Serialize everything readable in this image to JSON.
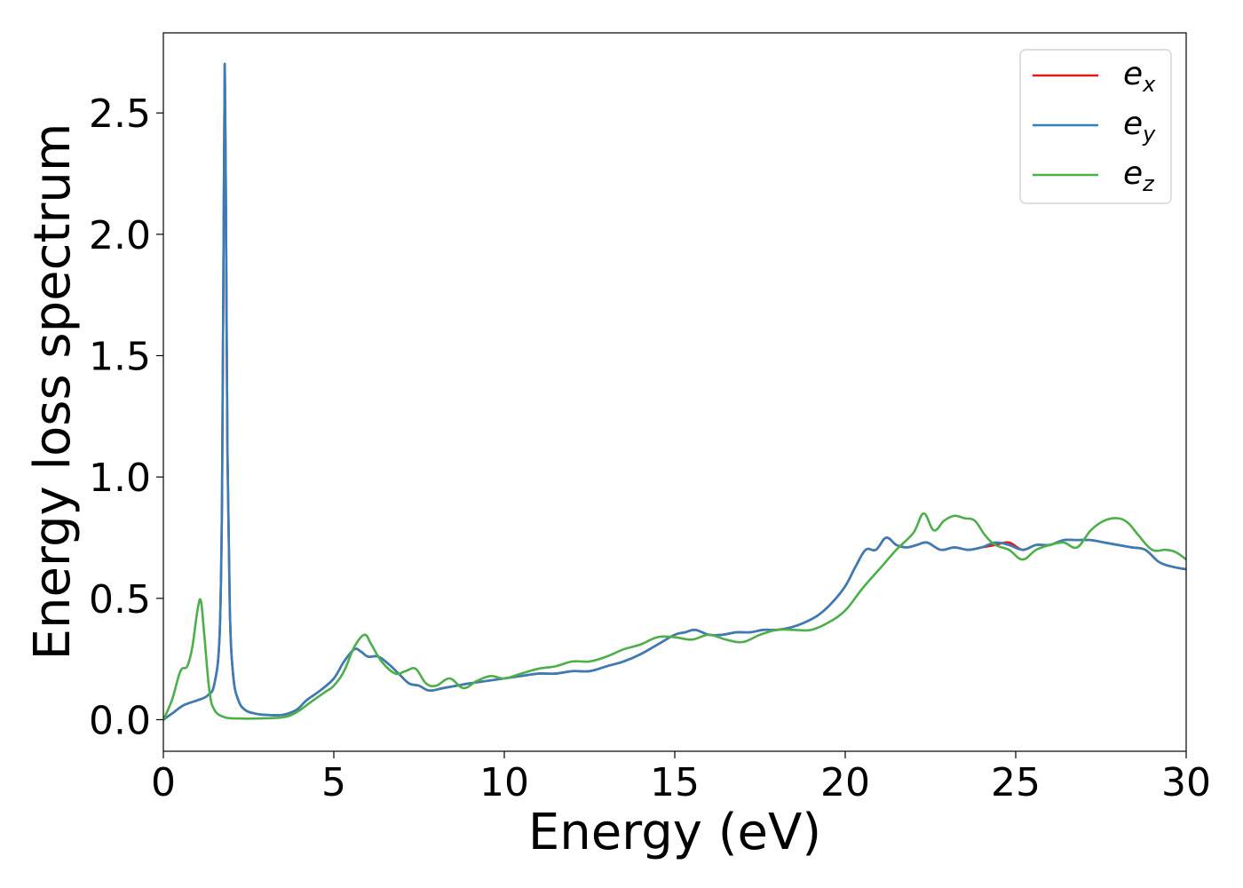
{
  "chart_data": {
    "type": "line",
    "title": "",
    "xlabel": "Energy (eV)",
    "ylabel": "Energy loss spectrum",
    "xlim": [
      0,
      30
    ],
    "ylim": [
      -0.13,
      2.83
    ],
    "xticks": [
      0,
      5,
      10,
      15,
      20,
      25,
      30
    ],
    "xtick_labels": [
      "0",
      "5",
      "10",
      "15",
      "20",
      "25",
      "30"
    ],
    "yticks": [
      0.0,
      0.5,
      1.0,
      1.5,
      2.0,
      2.5
    ],
    "ytick_labels": [
      "0.0",
      "0.5",
      "1.0",
      "1.5",
      "2.0",
      "2.5"
    ],
    "grid": false,
    "legend_position": "top-right",
    "series": [
      {
        "name": "e_x",
        "label_main": "e",
        "label_sub": "x",
        "color": "#e41a1c",
        "x": [
          0,
          0.3,
          0.6,
          1.0,
          1.3,
          1.5,
          1.65,
          1.72,
          1.76,
          1.8,
          1.84,
          1.88,
          1.95,
          2.05,
          2.2,
          2.4,
          2.7,
          3.0,
          3.5,
          3.9,
          4.2,
          4.6,
          5.0,
          5.3,
          5.6,
          5.8,
          6.0,
          6.3,
          6.6,
          6.9,
          7.2,
          7.5,
          7.8,
          8.2,
          8.6,
          9.0,
          9.5,
          10.0,
          10.5,
          11.0,
          11.5,
          12.0,
          12.5,
          13.0,
          13.5,
          14.0,
          14.5,
          15.0,
          15.3,
          15.6,
          16.0,
          16.4,
          16.8,
          17.2,
          17.6,
          18.0,
          18.4,
          18.8,
          19.2,
          19.6,
          20.0,
          20.3,
          20.6,
          20.9,
          21.2,
          21.5,
          21.8,
          22.1,
          22.4,
          22.8,
          23.2,
          23.6,
          24.0,
          24.4,
          24.8,
          25.2,
          25.6,
          26.0,
          26.4,
          26.8,
          27.2,
          27.6,
          28.0,
          28.4,
          28.8,
          29.2,
          29.6,
          30.0
        ],
        "y": [
          0.0,
          0.03,
          0.06,
          0.08,
          0.1,
          0.15,
          0.35,
          0.9,
          1.8,
          2.7,
          2.0,
          1.1,
          0.45,
          0.18,
          0.08,
          0.04,
          0.025,
          0.02,
          0.02,
          0.04,
          0.08,
          0.12,
          0.17,
          0.24,
          0.29,
          0.28,
          0.26,
          0.26,
          0.23,
          0.19,
          0.15,
          0.14,
          0.12,
          0.13,
          0.14,
          0.15,
          0.16,
          0.17,
          0.18,
          0.19,
          0.19,
          0.2,
          0.2,
          0.22,
          0.24,
          0.27,
          0.31,
          0.35,
          0.36,
          0.37,
          0.35,
          0.35,
          0.36,
          0.36,
          0.37,
          0.37,
          0.38,
          0.4,
          0.43,
          0.48,
          0.55,
          0.63,
          0.7,
          0.7,
          0.75,
          0.72,
          0.71,
          0.72,
          0.73,
          0.7,
          0.71,
          0.7,
          0.71,
          0.72,
          0.73,
          0.7,
          0.72,
          0.72,
          0.74,
          0.74,
          0.74,
          0.73,
          0.72,
          0.71,
          0.7,
          0.65,
          0.63,
          0.62
        ]
      },
      {
        "name": "e_y",
        "label_main": "e",
        "label_sub": "y",
        "color": "#377eb8",
        "x": [
          0,
          0.3,
          0.6,
          1.0,
          1.3,
          1.5,
          1.65,
          1.72,
          1.76,
          1.8,
          1.84,
          1.88,
          1.95,
          2.05,
          2.2,
          2.4,
          2.7,
          3.0,
          3.5,
          3.9,
          4.2,
          4.6,
          5.0,
          5.3,
          5.6,
          5.8,
          6.0,
          6.3,
          6.6,
          6.9,
          7.2,
          7.5,
          7.8,
          8.2,
          8.6,
          9.0,
          9.5,
          10.0,
          10.5,
          11.0,
          11.5,
          12.0,
          12.5,
          13.0,
          13.5,
          14.0,
          14.5,
          15.0,
          15.3,
          15.6,
          16.0,
          16.4,
          16.8,
          17.2,
          17.6,
          18.0,
          18.4,
          18.8,
          19.2,
          19.6,
          20.0,
          20.3,
          20.6,
          20.9,
          21.2,
          21.5,
          21.8,
          22.1,
          22.4,
          22.8,
          23.2,
          23.6,
          24.0,
          24.4,
          24.8,
          25.2,
          25.6,
          26.0,
          26.4,
          26.8,
          27.2,
          27.6,
          28.0,
          28.4,
          28.8,
          29.2,
          29.6,
          30.0
        ],
        "y": [
          0.0,
          0.03,
          0.06,
          0.08,
          0.1,
          0.15,
          0.35,
          0.9,
          1.8,
          2.7,
          2.0,
          1.1,
          0.45,
          0.18,
          0.08,
          0.04,
          0.025,
          0.02,
          0.02,
          0.04,
          0.08,
          0.12,
          0.17,
          0.24,
          0.29,
          0.28,
          0.26,
          0.26,
          0.23,
          0.19,
          0.15,
          0.14,
          0.12,
          0.13,
          0.14,
          0.15,
          0.16,
          0.17,
          0.18,
          0.19,
          0.19,
          0.2,
          0.2,
          0.22,
          0.24,
          0.27,
          0.31,
          0.35,
          0.36,
          0.37,
          0.35,
          0.35,
          0.36,
          0.36,
          0.37,
          0.37,
          0.38,
          0.4,
          0.43,
          0.48,
          0.55,
          0.63,
          0.7,
          0.7,
          0.75,
          0.72,
          0.71,
          0.72,
          0.73,
          0.7,
          0.71,
          0.7,
          0.71,
          0.73,
          0.72,
          0.7,
          0.72,
          0.72,
          0.74,
          0.74,
          0.74,
          0.73,
          0.72,
          0.71,
          0.7,
          0.65,
          0.63,
          0.62
        ]
      },
      {
        "name": "e_z",
        "label_main": "e",
        "label_sub": "z",
        "color": "#4daf4a",
        "x": [
          0,
          0.25,
          0.5,
          0.7,
          0.85,
          1.0,
          1.1,
          1.2,
          1.35,
          1.5,
          1.8,
          2.2,
          2.8,
          3.5,
          3.9,
          4.3,
          4.7,
          5.0,
          5.3,
          5.6,
          5.9,
          6.1,
          6.4,
          6.8,
          7.1,
          7.4,
          7.7,
          8.0,
          8.4,
          8.8,
          9.2,
          9.6,
          10.0,
          10.5,
          11.0,
          11.5,
          12.0,
          12.5,
          13.0,
          13.5,
          14.0,
          14.5,
          15.0,
          15.5,
          16.0,
          16.5,
          17.0,
          17.5,
          18.0,
          18.5,
          19.0,
          19.5,
          20.0,
          20.5,
          21.0,
          21.5,
          22.0,
          22.3,
          22.6,
          22.9,
          23.2,
          23.5,
          23.8,
          24.1,
          24.4,
          24.8,
          25.2,
          25.6,
          26.0,
          26.4,
          26.8,
          27.2,
          27.6,
          28.0,
          28.3,
          28.6,
          29.0,
          29.4,
          29.7,
          30.0
        ],
        "y": [
          0.0,
          0.08,
          0.2,
          0.22,
          0.3,
          0.45,
          0.49,
          0.35,
          0.12,
          0.04,
          0.01,
          0.005,
          0.005,
          0.01,
          0.03,
          0.07,
          0.11,
          0.14,
          0.2,
          0.3,
          0.35,
          0.31,
          0.24,
          0.19,
          0.2,
          0.21,
          0.15,
          0.14,
          0.17,
          0.13,
          0.16,
          0.18,
          0.17,
          0.19,
          0.21,
          0.22,
          0.24,
          0.24,
          0.26,
          0.29,
          0.31,
          0.34,
          0.34,
          0.33,
          0.35,
          0.33,
          0.32,
          0.35,
          0.37,
          0.37,
          0.37,
          0.4,
          0.45,
          0.54,
          0.62,
          0.7,
          0.77,
          0.85,
          0.78,
          0.82,
          0.84,
          0.83,
          0.82,
          0.76,
          0.72,
          0.7,
          0.66,
          0.7,
          0.72,
          0.73,
          0.71,
          0.78,
          0.82,
          0.83,
          0.81,
          0.76,
          0.7,
          0.7,
          0.69,
          0.66
        ]
      }
    ]
  }
}
